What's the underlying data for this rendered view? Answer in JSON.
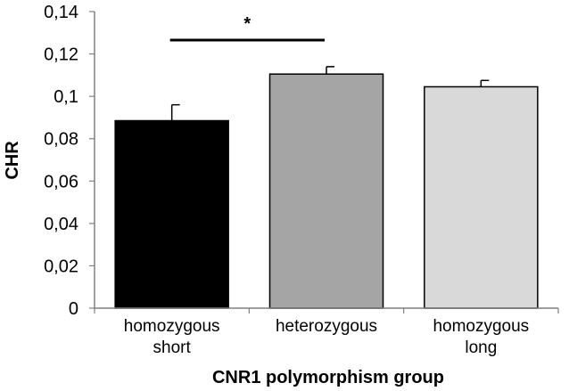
{
  "chart_data": {
    "type": "bar",
    "categories": [
      [
        "homozygous",
        "short"
      ],
      [
        "heterozygous"
      ],
      [
        "homozygous",
        "long"
      ]
    ],
    "values": [
      0.0885,
      0.1105,
      0.1045
    ],
    "errors": [
      0.0075,
      0.0035,
      0.003
    ],
    "bar_colors": [
      "#000000",
      "#a5a5a5",
      "#d9d9d9"
    ],
    "ylabel": "CHR",
    "xlabel": "CNR1 polymorphism group",
    "ylim": [
      0,
      0.14
    ],
    "yticks": [
      0,
      0.02,
      0.04,
      0.06,
      0.08,
      0.1,
      0.12,
      0.14
    ],
    "ytick_labels": [
      "0",
      "0,02",
      "0,04",
      "0,06",
      "0,08",
      "0,1",
      "0,12",
      "0,14"
    ],
    "significance": {
      "from": 0,
      "to": 1,
      "label": "*"
    },
    "grid": false,
    "legend": "none"
  }
}
